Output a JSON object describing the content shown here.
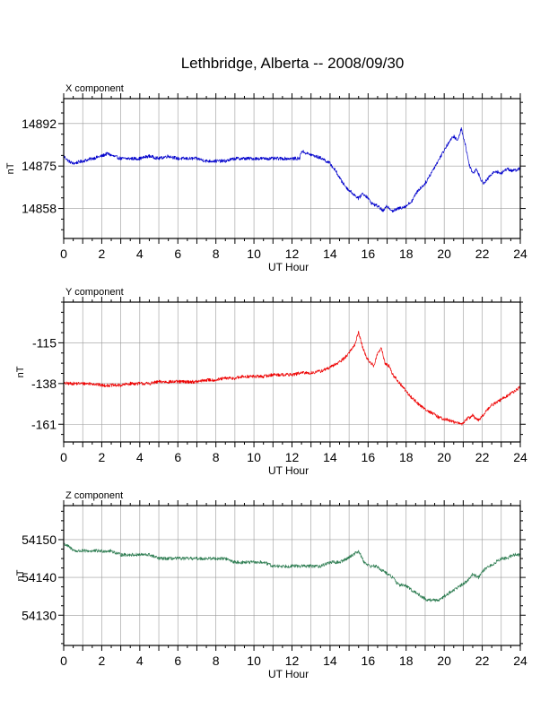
{
  "figure": {
    "title": "Lethbridge, Alberta -- 2008/09/30"
  },
  "chart_data": [
    {
      "type": "line",
      "panel_label": "X component",
      "xlabel": "UT Hour",
      "ylabel": "nT",
      "xlim": [
        0,
        24
      ],
      "ylim": [
        14846,
        14902
      ],
      "xticks": [
        0,
        2,
        4,
        6,
        8,
        10,
        12,
        14,
        16,
        18,
        20,
        22,
        24
      ],
      "xtick_labels": [
        "0",
        "2",
        "4",
        "6",
        "8",
        "10",
        "12",
        "14",
        "16",
        "18",
        "20",
        "22",
        "24"
      ],
      "yticks": [
        14858,
        14875,
        14892
      ],
      "ytick_labels": [
        "14858",
        "14875",
        "14892"
      ],
      "grid": true,
      "color": "#0000cc",
      "series": [
        {
          "x": [
            0,
            0.25,
            0.5,
            1,
            1.5,
            2,
            2.3,
            2.6,
            3,
            3.5,
            4,
            4.5,
            5,
            5.5,
            6,
            6.5,
            7,
            7.5,
            8,
            8.5,
            9,
            9.5,
            10,
            10.5,
            11,
            11.5,
            12,
            12.4,
            12.5,
            12.8,
            13.2,
            13.6,
            14,
            14.3,
            14.6,
            14.9,
            15.2,
            15.5,
            15.7,
            15.9,
            16.2,
            16.5,
            16.8,
            17,
            17.3,
            17.6,
            18,
            18.3,
            18.6,
            19,
            19.3,
            19.6,
            19.9,
            20.2,
            20.5,
            20.7,
            20.9,
            21.1,
            21.3,
            21.5,
            21.7,
            21.9,
            22.1,
            22.4,
            22.7,
            23,
            23.3,
            23.6,
            24
          ],
          "y": [
            14879,
            14877,
            14876,
            14877,
            14878,
            14879,
            14880,
            14879,
            14878,
            14878,
            14878,
            14879,
            14878,
            14879,
            14878,
            14878,
            14878,
            14877,
            14877,
            14877,
            14878,
            14878,
            14878,
            14878,
            14878,
            14878,
            14878,
            14878,
            14881,
            14880,
            14879,
            14878,
            14876,
            14873,
            14869,
            14866,
            14864,
            14862,
            14864,
            14863,
            14860,
            14859,
            14857,
            14859,
            14857,
            14858,
            14859,
            14861,
            14865,
            14868,
            14872,
            14876,
            14880,
            14884,
            14887,
            14885,
            14890,
            14884,
            14876,
            14872,
            14874,
            14870,
            14868,
            14871,
            14873,
            14872,
            14874,
            14873,
            14874
          ]
        }
      ]
    },
    {
      "type": "line",
      "panel_label": "Y component",
      "xlabel": "UT Hour",
      "ylabel": "nT",
      "xlim": [
        0,
        24
      ],
      "ylim": [
        -171,
        -92
      ],
      "xticks": [
        0,
        2,
        4,
        6,
        8,
        10,
        12,
        14,
        16,
        18,
        20,
        22,
        24
      ],
      "xtick_labels": [
        "0",
        "2",
        "4",
        "6",
        "8",
        "10",
        "12",
        "14",
        "16",
        "18",
        "20",
        "22",
        "24"
      ],
      "yticks": [
        -161,
        -138,
        -115
      ],
      "ytick_labels": [
        "-161",
        "-138",
        "-115"
      ],
      "grid": true,
      "color": "#ee0000",
      "series": [
        {
          "x": [
            0,
            0.5,
            1,
            1.5,
            2,
            2.5,
            3,
            3.5,
            4,
            4.5,
            5,
            5.5,
            6,
            6.5,
            7,
            7.5,
            8,
            8.5,
            9,
            9.5,
            10,
            10.5,
            11,
            11.5,
            12,
            12.5,
            13,
            13.5,
            14,
            14.3,
            14.6,
            14.9,
            15.1,
            15.3,
            15.5,
            15.7,
            15.9,
            16.1,
            16.3,
            16.5,
            16.7,
            16.9,
            17.1,
            17.3,
            17.6,
            17.9,
            18.2,
            18.5,
            18.8,
            19.1,
            19.4,
            19.7,
            20,
            20.3,
            20.6,
            20.9,
            21.2,
            21.5,
            21.8,
            22.1,
            22.4,
            22.7,
            23,
            23.3,
            23.6,
            24
          ],
          "y": [
            -138,
            -138,
            -138,
            -138,
            -139,
            -139,
            -139,
            -138,
            -138,
            -138,
            -137,
            -137,
            -137,
            -137,
            -137,
            -136,
            -136,
            -135,
            -135,
            -134,
            -134,
            -134,
            -133,
            -133,
            -133,
            -132,
            -132,
            -131,
            -129,
            -127,
            -125,
            -122,
            -119,
            -116,
            -109,
            -117,
            -123,
            -126,
            -128,
            -121,
            -118,
            -127,
            -128,
            -133,
            -137,
            -141,
            -145,
            -148,
            -151,
            -153,
            -155,
            -157,
            -158,
            -159,
            -160,
            -161,
            -158,
            -156,
            -159,
            -155,
            -151,
            -149,
            -147,
            -145,
            -143,
            -140
          ]
        }
      ]
    },
    {
      "type": "line",
      "panel_label": "Z component",
      "xlabel": "UT Hour",
      "ylabel": "nT",
      "xlim": [
        0,
        24
      ],
      "ylim": [
        54122,
        54159
      ],
      "xticks": [
        0,
        2,
        4,
        6,
        8,
        10,
        12,
        14,
        16,
        18,
        20,
        22,
        24
      ],
      "xtick_labels": [
        "0",
        "2",
        "4",
        "6",
        "8",
        "10",
        "12",
        "14",
        "16",
        "18",
        "20",
        "22",
        "24"
      ],
      "yticks": [
        54130,
        54140,
        54150
      ],
      "ytick_labels": [
        "54130",
        "54140",
        "54150"
      ],
      "grid": true,
      "color": "#2e7d52",
      "series": [
        {
          "x": [
            0,
            0.3,
            0.6,
            1,
            1.5,
            2,
            2.5,
            3,
            3.5,
            4,
            4.5,
            5,
            5.5,
            6,
            6.5,
            7,
            7.5,
            8,
            8.5,
            9,
            9.5,
            10,
            10.5,
            11,
            11.5,
            12,
            12.5,
            13,
            13.5,
            14,
            14.5,
            14.9,
            15.2,
            15.5,
            15.8,
            16.1,
            16.4,
            16.7,
            17,
            17.3,
            17.6,
            17.9,
            18.2,
            18.5,
            18.8,
            19.1,
            19.4,
            19.7,
            20,
            20.3,
            20.6,
            20.9,
            21.2,
            21.5,
            21.8,
            22.1,
            22.4,
            22.7,
            23,
            23.3,
            23.6,
            24
          ],
          "y": [
            54149,
            54148,
            54147,
            54147,
            54147,
            54147,
            54147,
            54146,
            54146,
            54146,
            54146,
            54145,
            54145,
            54145,
            54145,
            54145,
            54145,
            54145,
            54145,
            54144,
            54144,
            54144,
            54144,
            54143,
            54143,
            54143,
            54143,
            54143,
            54143,
            54144,
            54144,
            54145,
            54146,
            54147,
            54144,
            54143,
            54143,
            54142,
            54141,
            54140,
            54138,
            54138,
            54137,
            54136,
            54135,
            54134,
            54134,
            54134,
            54135,
            54136,
            54137,
            54138,
            54139,
            54141,
            54140,
            54142,
            54143,
            54144,
            54145,
            54145,
            54146,
            54146
          ]
        }
      ]
    }
  ]
}
